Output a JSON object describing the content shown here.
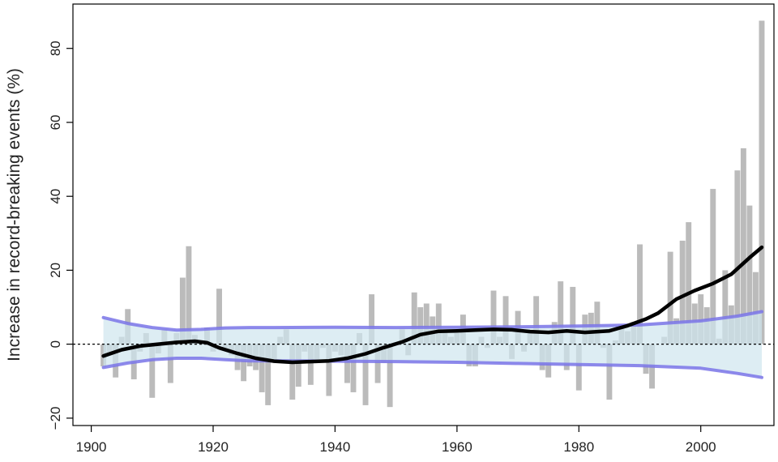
{
  "chart_data": {
    "type": "bar",
    "title": "",
    "xlabel": "",
    "ylabel": "Increase in record-breaking events (%)",
    "xlim": [
      1897,
      2012
    ],
    "ylim": [
      -22,
      92
    ],
    "xticks": [
      1900,
      1920,
      1940,
      1960,
      1980,
      2000
    ],
    "yticks": [
      -20,
      0,
      20,
      40,
      60,
      80
    ],
    "ytick_labels": [
      "−20",
      "0",
      "20",
      "40",
      "60",
      "80"
    ],
    "grid": false,
    "zero_line": "dashed",
    "colors": {
      "bars": "#bbbbbb",
      "band_fill": "#cfe6ee",
      "band_edge": "#7a74e8",
      "trend": "#000000"
    },
    "series": [
      {
        "kind": "bars",
        "x": [
          1902,
          1903,
          1904,
          1905,
          1906,
          1907,
          1908,
          1909,
          1910,
          1911,
          1912,
          1913,
          1914,
          1915,
          1916,
          1917,
          1918,
          1919,
          1920,
          1921,
          1922,
          1923,
          1924,
          1925,
          1926,
          1927,
          1928,
          1929,
          1930,
          1931,
          1932,
          1933,
          1934,
          1935,
          1936,
          1937,
          1938,
          1939,
          1940,
          1941,
          1942,
          1943,
          1944,
          1945,
          1946,
          1947,
          1948,
          1949,
          1950,
          1951,
          1952,
          1953,
          1954,
          1955,
          1956,
          1957,
          1958,
          1959,
          1960,
          1961,
          1962,
          1963,
          1964,
          1965,
          1966,
          1967,
          1968,
          1969,
          1970,
          1971,
          1972,
          1973,
          1974,
          1975,
          1976,
          1977,
          1978,
          1979,
          1980,
          1981,
          1982,
          1983,
          1984,
          1985,
          1986,
          1987,
          1988,
          1989,
          1990,
          1991,
          1992,
          1993,
          1994,
          1995,
          1996,
          1997,
          1998,
          1999,
          2000,
          2001,
          2002,
          2003,
          2004,
          2005,
          2006,
          2007,
          2008,
          2009,
          2010
        ],
        "values": [
          -6,
          -3,
          -9,
          2,
          9.5,
          -9.5,
          -2,
          3,
          -14.5,
          -2.5,
          4,
          -10.5,
          3,
          18,
          26.5,
          2.5,
          1,
          4.5,
          -2,
          15,
          -1.5,
          -3,
          -7,
          -10,
          -6,
          -7,
          -13,
          -16.5,
          -4,
          2,
          4,
          -15,
          -11.5,
          -2,
          -11,
          -4,
          -1,
          -14,
          -2,
          -3,
          -10.5,
          -13,
          3,
          -16.5,
          13.5,
          -10.5,
          -5,
          -17,
          0.5,
          4,
          -3,
          14,
          10,
          11,
          7.5,
          11,
          4,
          2,
          3,
          8,
          -6,
          -6,
          2,
          -1,
          14.5,
          2,
          13,
          -4,
          9,
          -2,
          3,
          13,
          -7,
          -9,
          6,
          17,
          -7,
          15.5,
          -12.5,
          8,
          8.5,
          11.5,
          -1,
          -15,
          1,
          5,
          3.5,
          6,
          27,
          -8,
          -12,
          0,
          2,
          25,
          7,
          28,
          33,
          11,
          13.5,
          10,
          42,
          1.5,
          20,
          10.5,
          47,
          53,
          37.5,
          19.5,
          87.5
        ]
      },
      {
        "kind": "band",
        "x": [
          1902,
          1906,
          1910,
          1914,
          1918,
          1922,
          1926,
          1930,
          1940,
          1950,
          1960,
          1970,
          1980,
          1990,
          2000,
          2006,
          2010
        ],
        "upper": [
          7.2,
          5.6,
          4.5,
          3.8,
          4,
          4.4,
          4.5,
          4.5,
          4.6,
          4.5,
          4.6,
          4.7,
          4.9,
          5.2,
          6.3,
          7.6,
          8.8
        ],
        "lower": [
          -6.3,
          -5.1,
          -4.2,
          -3.8,
          -3.8,
          -4.2,
          -4.5,
          -4.5,
          -4.6,
          -4.7,
          -4.9,
          -5.2,
          -5.5,
          -5.8,
          -6.5,
          -7.9,
          -9
        ]
      },
      {
        "kind": "line",
        "x": [
          1902,
          1905,
          1908,
          1911,
          1914,
          1917,
          1919,
          1921,
          1924,
          1927,
          1930,
          1933,
          1936,
          1939,
          1942,
          1945,
          1948,
          1951,
          1954,
          1957,
          1960,
          1963,
          1966,
          1969,
          1972,
          1975,
          1978,
          1981,
          1985,
          1988,
          1991,
          1993,
          1996,
          1999,
          2002,
          2005,
          2008,
          2010
        ],
        "values": [
          -3.2,
          -1.5,
          -0.5,
          0,
          0.5,
          0.8,
          0.4,
          -1,
          -2.5,
          -3.8,
          -4.6,
          -4.9,
          -4.7,
          -4.5,
          -3.8,
          -2.6,
          -0.9,
          0.6,
          2.6,
          3.5,
          3.6,
          3.8,
          4,
          3.9,
          3.4,
          3.2,
          3.6,
          3.2,
          3.6,
          5,
          6.8,
          8.4,
          12.2,
          14.5,
          16.4,
          18.9,
          23.4,
          26.2
        ]
      }
    ]
  }
}
